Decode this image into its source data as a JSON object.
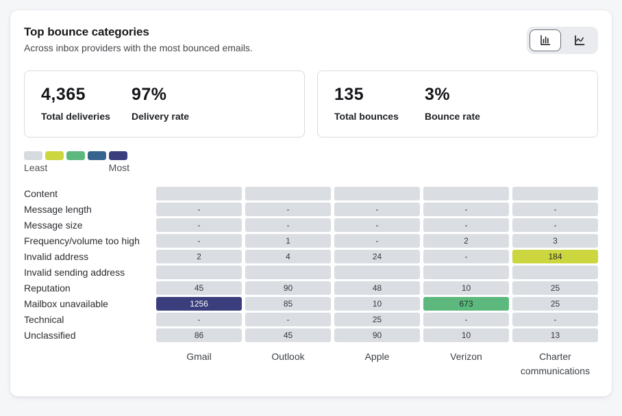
{
  "card": {
    "title": "Top bounce categories",
    "subtitle": "Across inbox providers with the most bounced emails.",
    "view_toggle": [
      {
        "id": "bar-chart-view",
        "icon": "bar-chart-icon",
        "selected": true
      },
      {
        "id": "line-chart-view",
        "icon": "line-chart-icon",
        "selected": false
      }
    ],
    "stats": [
      {
        "primary_value": "4,365",
        "primary_label": "Total deliveries",
        "secondary_value": "97%",
        "secondary_label": "Delivery rate"
      },
      {
        "primary_value": "135",
        "primary_label": "Total bounces",
        "secondary_value": "3%",
        "secondary_label": "Bounce rate"
      }
    ],
    "legend": {
      "least_label": "Least",
      "most_label": "Most",
      "swatches": [
        "#d7dbe0",
        "#ccd63f",
        "#5cb87d",
        "#36648f",
        "#3a3e7d"
      ]
    }
  },
  "chart_data": {
    "type": "heatmap",
    "title": "Top bounce categories",
    "columns": [
      "Gmail",
      "Outlook",
      "Apple",
      "Verizon",
      "Charter communications"
    ],
    "rows": [
      "Content",
      "Message length",
      "Message size",
      "Frequency/volume too high",
      "Invalid address",
      "Invalid sending address",
      "Reputation",
      "Mailbox unavailable",
      "Technical",
      "Unclassified"
    ],
    "values": [
      [
        "",
        "",
        "",
        "",
        ""
      ],
      [
        "-",
        "-",
        "-",
        "-",
        "-"
      ],
      [
        "-",
        "-",
        "-",
        "-",
        "-"
      ],
      [
        "-",
        "1",
        "-",
        "2",
        "3"
      ],
      [
        "2",
        "4",
        "24",
        "-",
        "184"
      ],
      [
        "",
        "",
        "",
        "",
        ""
      ],
      [
        "45",
        "90",
        "48",
        "10",
        "25"
      ],
      [
        "1256",
        "85",
        "10",
        "673",
        "25"
      ],
      [
        "-",
        "-",
        "25",
        "-",
        "-"
      ],
      [
        "86",
        "45",
        "90",
        "10",
        "13"
      ]
    ],
    "default_cell_color": "#dadde2",
    "highlight_cells": [
      {
        "row": 4,
        "col": 4,
        "value": 184,
        "color": "#ccd63f",
        "text_color": "#2b2b2b"
      },
      {
        "row": 7,
        "col": 0,
        "value": 1256,
        "color": "#3a3e7d",
        "text_color": "#ffffff"
      },
      {
        "row": 7,
        "col": 3,
        "value": 673,
        "color": "#5cb87d",
        "text_color": "#1f2d24"
      }
    ],
    "color_scale": [
      "#d7dbe0",
      "#ccd63f",
      "#5cb87d",
      "#36648f",
      "#3a3e7d"
    ],
    "legend_position": "top-left"
  }
}
